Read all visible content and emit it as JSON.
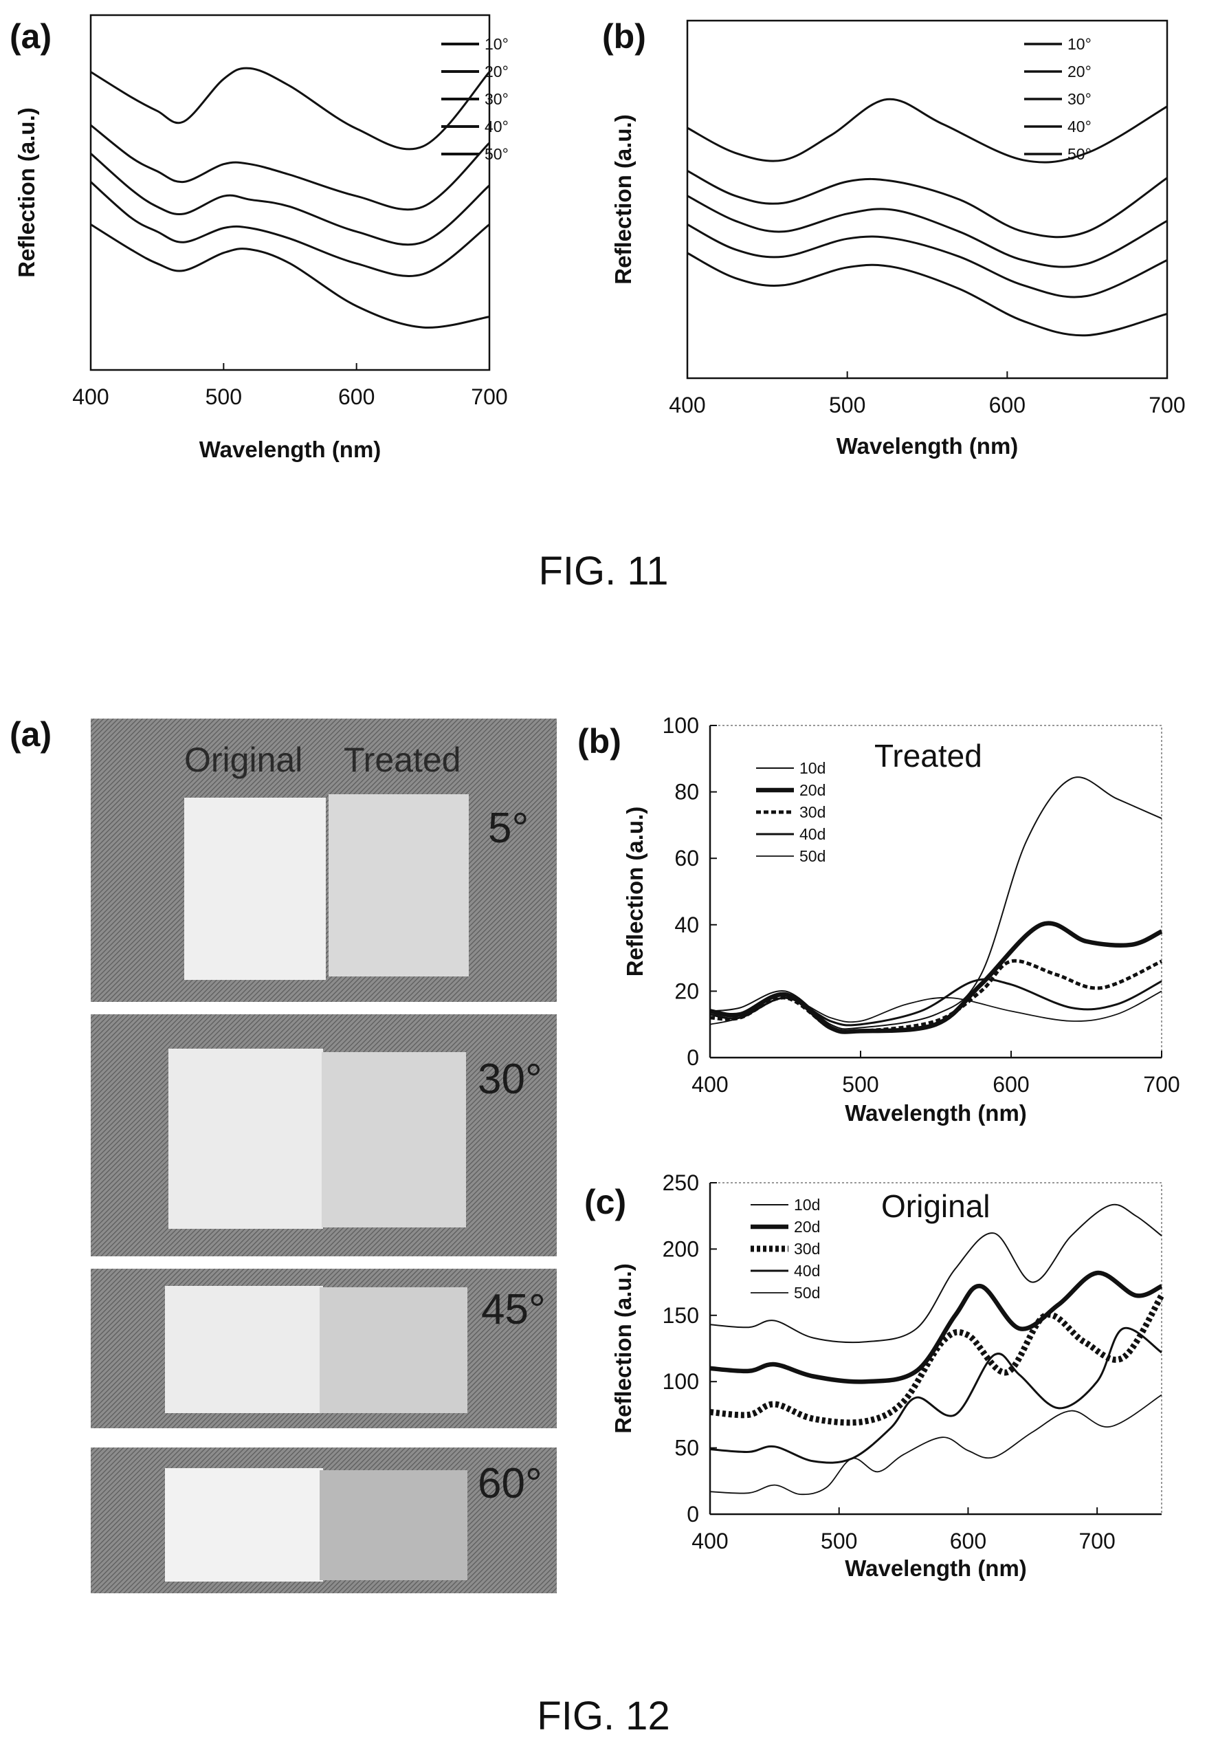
{
  "fig11": {
    "caption": "FIG. 11",
    "panel_a_label": "(a)",
    "panel_b_label": "(b)"
  },
  "fig12": {
    "caption": "FIG. 12",
    "panel_a": {
      "label": "(a)",
      "original_label": "Original",
      "treated_label": "Treated",
      "angles": [
        "5°",
        "30°",
        "45°",
        "60°"
      ]
    },
    "panel_b_label": "(b)",
    "panel_b_title": "Treated",
    "panel_c_label": "(c)",
    "panel_c_title": "Original"
  },
  "chart_data": [
    {
      "id": "fig11a",
      "type": "line",
      "xlabel": "Wavelength (nm)",
      "ylabel": "Reflection (a.u.)",
      "xlim": [
        400,
        700
      ],
      "ylim": [
        0,
        10
      ],
      "xticks": [
        400,
        500,
        600,
        700
      ],
      "show_y_ticks": false,
      "legend_position": "top-right",
      "series": [
        {
          "name": "10°",
          "x": [
            400,
            430,
            450,
            470,
            500,
            520,
            550,
            600,
            650,
            700
          ],
          "y": [
            8.4,
            7.7,
            7.3,
            7.0,
            8.2,
            8.5,
            8.0,
            6.8,
            6.3,
            8.4
          ]
        },
        {
          "name": "20°",
          "x": [
            400,
            430,
            450,
            470,
            500,
            520,
            550,
            600,
            650,
            700
          ],
          "y": [
            6.9,
            6.0,
            5.6,
            5.3,
            5.8,
            5.8,
            5.5,
            4.9,
            4.6,
            6.4
          ]
        },
        {
          "name": "30°",
          "x": [
            400,
            430,
            450,
            470,
            500,
            520,
            550,
            600,
            650,
            700
          ],
          "y": [
            6.1,
            5.1,
            4.6,
            4.4,
            4.9,
            4.8,
            4.6,
            3.9,
            3.6,
            5.2
          ]
        },
        {
          "name": "40°",
          "x": [
            400,
            430,
            450,
            470,
            500,
            520,
            550,
            600,
            650,
            700
          ],
          "y": [
            5.3,
            4.3,
            3.9,
            3.6,
            4.0,
            4.0,
            3.7,
            3.0,
            2.7,
            4.1
          ]
        },
        {
          "name": "50°",
          "x": [
            400,
            430,
            450,
            470,
            500,
            520,
            550,
            600,
            650,
            700
          ],
          "y": [
            4.1,
            3.4,
            3.0,
            2.8,
            3.3,
            3.4,
            3.0,
            1.8,
            1.2,
            1.5
          ]
        }
      ]
    },
    {
      "id": "fig11b",
      "type": "line",
      "xlabel": "Wavelength (nm)",
      "ylabel": "Reflection (a.u.)",
      "xlim": [
        400,
        700
      ],
      "ylim": [
        0,
        10
      ],
      "xticks": [
        400,
        500,
        600,
        700
      ],
      "show_y_ticks": false,
      "legend_position": "top-right",
      "series": [
        {
          "name": "10°",
          "x": [
            400,
            430,
            460,
            490,
            525,
            560,
            610,
            650,
            700
          ],
          "y": [
            7.0,
            6.3,
            6.1,
            6.8,
            7.8,
            7.1,
            6.1,
            6.3,
            7.6
          ]
        },
        {
          "name": "20°",
          "x": [
            400,
            430,
            460,
            500,
            530,
            570,
            610,
            650,
            700
          ],
          "y": [
            5.8,
            5.1,
            4.9,
            5.5,
            5.5,
            5.0,
            4.1,
            4.1,
            5.6
          ]
        },
        {
          "name": "30°",
          "x": [
            400,
            430,
            460,
            500,
            530,
            570,
            610,
            650,
            700
          ],
          "y": [
            5.1,
            4.4,
            4.1,
            4.6,
            4.7,
            4.1,
            3.3,
            3.2,
            4.4
          ]
        },
        {
          "name": "40°",
          "x": [
            400,
            430,
            460,
            500,
            530,
            570,
            610,
            650,
            700
          ],
          "y": [
            4.3,
            3.6,
            3.4,
            3.9,
            3.9,
            3.4,
            2.6,
            2.3,
            3.3
          ]
        },
        {
          "name": "50°",
          "x": [
            400,
            430,
            460,
            500,
            530,
            570,
            610,
            650,
            700
          ],
          "y": [
            3.5,
            2.8,
            2.6,
            3.1,
            3.1,
            2.5,
            1.6,
            1.2,
            1.8
          ]
        }
      ]
    },
    {
      "id": "fig12b",
      "type": "line",
      "title": "Treated",
      "xlabel": "Wavelength (nm)",
      "ylabel": "Reflection (a.u.)",
      "xlim": [
        400,
        700
      ],
      "ylim": [
        0,
        100
      ],
      "xticks": [
        400,
        500,
        600,
        700
      ],
      "yticks": [
        0,
        20,
        40,
        60,
        80,
        100
      ],
      "legend_position": "top-left",
      "series": [
        {
          "name": "10d",
          "x": [
            400,
            420,
            450,
            480,
            500,
            550,
            580,
            610,
            640,
            670,
            700
          ],
          "y": [
            14,
            15,
            20,
            10,
            9,
            13,
            25,
            65,
            84,
            78,
            72
          ]
        },
        {
          "name": "20d",
          "x": [
            400,
            420,
            450,
            480,
            500,
            550,
            580,
            620,
            650,
            680,
            700
          ],
          "y": [
            14,
            13,
            19,
            9,
            8,
            10,
            22,
            40,
            35,
            34,
            38
          ]
        },
        {
          "name": "30d",
          "x": [
            400,
            420,
            450,
            480,
            500,
            550,
            580,
            600,
            630,
            660,
            700
          ],
          "y": [
            12,
            12,
            18,
            9,
            8,
            11,
            20,
            29,
            25,
            21,
            29
          ]
        },
        {
          "name": "40d",
          "x": [
            400,
            420,
            450,
            480,
            500,
            540,
            575,
            600,
            640,
            670,
            700
          ],
          "y": [
            13,
            12,
            18,
            11,
            10,
            14,
            23,
            22,
            15,
            16,
            23
          ]
        },
        {
          "name": "50d",
          "x": [
            400,
            420,
            450,
            480,
            500,
            530,
            560,
            600,
            640,
            670,
            700
          ],
          "y": [
            10,
            12,
            18,
            12,
            11,
            16,
            18,
            14,
            11,
            13,
            20
          ]
        }
      ]
    },
    {
      "id": "fig12c",
      "type": "line",
      "title": "Original",
      "xlabel": "Wavelength (nm)",
      "ylabel": "Reflection (a.u.)",
      "xlim": [
        400,
        750
      ],
      "ylim": [
        0,
        250
      ],
      "xticks": [
        400,
        500,
        600,
        700
      ],
      "yticks": [
        0,
        50,
        100,
        150,
        200,
        250
      ],
      "legend_position": "top-left",
      "series": [
        {
          "name": "10d",
          "x": [
            400,
            430,
            450,
            480,
            520,
            560,
            590,
            620,
            650,
            680,
            710,
            730,
            750
          ],
          "y": [
            143,
            141,
            146,
            133,
            130,
            140,
            185,
            212,
            175,
            210,
            233,
            225,
            210
          ]
        },
        {
          "name": "20d",
          "x": [
            400,
            430,
            450,
            480,
            520,
            560,
            590,
            610,
            640,
            670,
            700,
            730,
            750
          ],
          "y": [
            110,
            108,
            113,
            104,
            100,
            108,
            150,
            172,
            140,
            158,
            182,
            165,
            172
          ]
        },
        {
          "name": "30d",
          "x": [
            400,
            430,
            450,
            480,
            520,
            550,
            580,
            600,
            630,
            660,
            690,
            720,
            750
          ],
          "y": [
            77,
            75,
            83,
            72,
            70,
            85,
            130,
            135,
            107,
            150,
            130,
            118,
            165
          ]
        },
        {
          "name": "40d",
          "x": [
            400,
            430,
            450,
            480,
            510,
            540,
            560,
            590,
            620,
            640,
            670,
            700,
            720,
            750
          ],
          "y": [
            49,
            47,
            51,
            40,
            42,
            65,
            88,
            75,
            120,
            105,
            80,
            100,
            140,
            122
          ]
        },
        {
          "name": "50d",
          "x": [
            400,
            430,
            450,
            470,
            490,
            510,
            530,
            550,
            580,
            600,
            620,
            650,
            680,
            710,
            750
          ],
          "y": [
            17,
            16,
            22,
            15,
            20,
            42,
            32,
            45,
            58,
            48,
            43,
            62,
            78,
            66,
            90
          ]
        }
      ]
    }
  ]
}
